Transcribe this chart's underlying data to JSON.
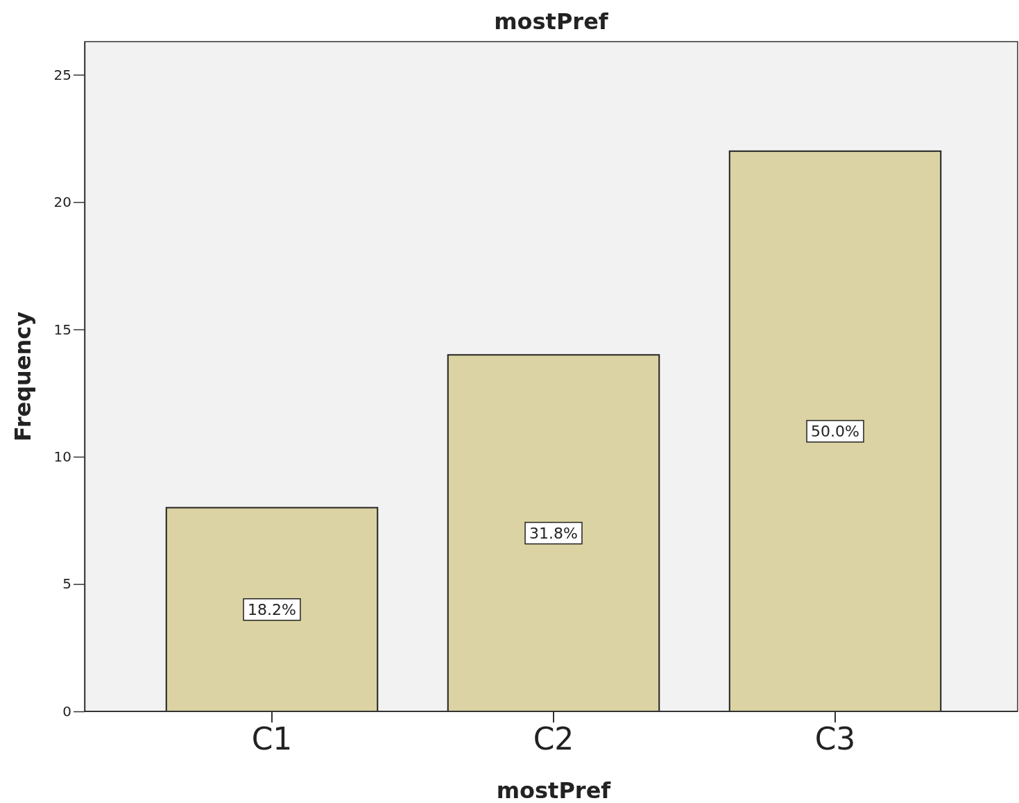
{
  "chart_data": {
    "type": "bar",
    "title": "mostPref",
    "xlabel": "mostPref",
    "ylabel": "Frequency",
    "categories": [
      "C1",
      "C2",
      "C3"
    ],
    "values": [
      8,
      14,
      22
    ],
    "annotations": [
      "18.2%",
      "31.8%",
      "50.0%"
    ],
    "color": "#dbd3a3",
    "ylim": [
      0,
      26.3
    ],
    "yticks": [
      0,
      5,
      10,
      15,
      20,
      25
    ],
    "grid": false
  }
}
